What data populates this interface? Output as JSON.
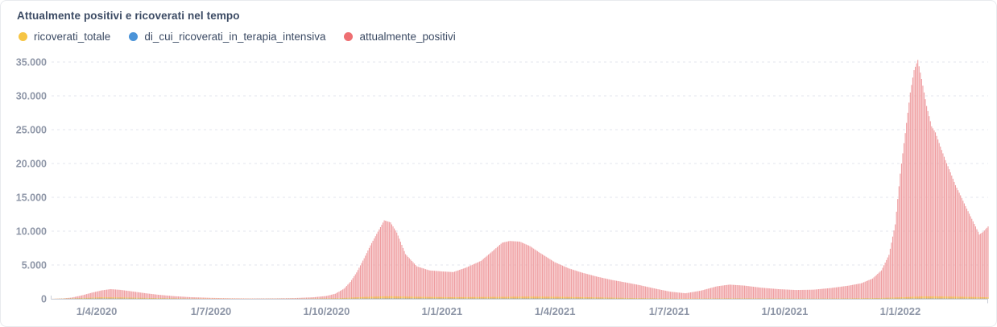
{
  "header": {
    "title": "Attualmente positivi e ricoverati nel tempo"
  },
  "legend": {
    "items": [
      {
        "name": "ricoverati_totale",
        "label": "ricoverati_totale",
        "color": "#f6c544"
      },
      {
        "name": "di_cui_ricoverati_in_terapia_intensiva",
        "label": "di_cui_ricoverati_in_terapia_intensiva",
        "color": "#4b93d8"
      },
      {
        "name": "attualmente_positivi",
        "label": "attualmente_positivi",
        "color": "#ee6f72"
      }
    ]
  },
  "chart_data": {
    "type": "bar",
    "title": "Attualmente positivi e ricoverati nel tempo",
    "xlabel": "",
    "ylabel": "",
    "grid": "horizontal-dashed",
    "legend_position": "top-left",
    "x_axis": {
      "start_date": "2020-02-25",
      "end_date": "2022-03-12",
      "ticks": [
        {
          "label": "1/4/2020",
          "date": "2020-04-01"
        },
        {
          "label": "1/7/2020",
          "date": "2020-07-01"
        },
        {
          "label": "1/10/2020",
          "date": "2020-10-01"
        },
        {
          "label": "1/1/2021",
          "date": "2021-01-01"
        },
        {
          "label": "1/4/2021",
          "date": "2021-04-01"
        },
        {
          "label": "1/7/2021",
          "date": "2021-07-01"
        },
        {
          "label": "1/10/2021",
          "date": "2021-10-01"
        },
        {
          "label": "1/1/2022",
          "date": "2022-01-01"
        }
      ]
    },
    "y_axis": {
      "min": 0,
      "max": 35000,
      "step": 5000,
      "tick_labels": [
        "0",
        "5.000",
        "10.000",
        "15.000",
        "20.000",
        "25.000",
        "30.000",
        "35.000"
      ]
    },
    "series": [
      {
        "name": "attualmente_positivi",
        "bar_color": "#ef9da0",
        "opacity": 1,
        "points": [
          [
            "2020-02-25",
            5
          ],
          [
            "2020-03-05",
            60
          ],
          [
            "2020-03-12",
            180
          ],
          [
            "2020-03-20",
            500
          ],
          [
            "2020-03-28",
            900
          ],
          [
            "2020-04-05",
            1250
          ],
          [
            "2020-04-12",
            1430
          ],
          [
            "2020-04-20",
            1320
          ],
          [
            "2020-05-01",
            1050
          ],
          [
            "2020-05-10",
            820
          ],
          [
            "2020-05-20",
            600
          ],
          [
            "2020-06-01",
            400
          ],
          [
            "2020-06-15",
            240
          ],
          [
            "2020-07-01",
            140
          ],
          [
            "2020-07-15",
            90
          ],
          [
            "2020-08-01",
            60
          ],
          [
            "2020-08-20",
            70
          ],
          [
            "2020-09-05",
            110
          ],
          [
            "2020-09-20",
            220
          ],
          [
            "2020-10-01",
            420
          ],
          [
            "2020-10-08",
            750
          ],
          [
            "2020-10-15",
            1500
          ],
          [
            "2020-10-20",
            2500
          ],
          [
            "2020-10-25",
            3900
          ],
          [
            "2020-10-31",
            6000
          ],
          [
            "2020-11-05",
            7900
          ],
          [
            "2020-11-10",
            9600
          ],
          [
            "2020-11-16",
            11600
          ],
          [
            "2020-11-21",
            11300
          ],
          [
            "2020-11-26",
            9800
          ],
          [
            "2020-12-03",
            6600
          ],
          [
            "2020-12-12",
            4800
          ],
          [
            "2020-12-22",
            4200
          ],
          [
            "2021-01-01",
            4050
          ],
          [
            "2021-01-10",
            3950
          ],
          [
            "2021-01-20",
            4600
          ],
          [
            "2021-02-01",
            5600
          ],
          [
            "2021-02-10",
            7000
          ],
          [
            "2021-02-18",
            8300
          ],
          [
            "2021-02-24",
            8550
          ],
          [
            "2021-03-04",
            8450
          ],
          [
            "2021-03-12",
            7800
          ],
          [
            "2021-03-20",
            6800
          ],
          [
            "2021-04-01",
            5400
          ],
          [
            "2021-04-12",
            4500
          ],
          [
            "2021-04-22",
            3900
          ],
          [
            "2021-05-04",
            3300
          ],
          [
            "2021-05-16",
            2800
          ],
          [
            "2021-05-28",
            2400
          ],
          [
            "2021-06-08",
            2000
          ],
          [
            "2021-06-20",
            1500
          ],
          [
            "2021-07-02",
            1050
          ],
          [
            "2021-07-14",
            820
          ],
          [
            "2021-07-26",
            1200
          ],
          [
            "2021-08-08",
            1850
          ],
          [
            "2021-08-18",
            2100
          ],
          [
            "2021-08-30",
            1950
          ],
          [
            "2021-09-12",
            1650
          ],
          [
            "2021-09-26",
            1430
          ],
          [
            "2021-10-10",
            1300
          ],
          [
            "2021-10-24",
            1350
          ],
          [
            "2021-11-07",
            1600
          ],
          [
            "2021-11-21",
            1950
          ],
          [
            "2021-12-01",
            2300
          ],
          [
            "2021-12-10",
            3000
          ],
          [
            "2021-12-17",
            4200
          ],
          [
            "2021-12-23",
            6500
          ],
          [
            "2021-12-28",
            11000
          ],
          [
            "2022-01-01",
            18500
          ],
          [
            "2022-01-05",
            24500
          ],
          [
            "2022-01-09",
            30500
          ],
          [
            "2022-01-12",
            33800
          ],
          [
            "2022-01-15",
            35300
          ],
          [
            "2022-01-18",
            32500
          ],
          [
            "2022-01-22",
            28500
          ],
          [
            "2022-01-26",
            25500
          ],
          [
            "2022-01-29",
            24600
          ],
          [
            "2022-02-02",
            22500
          ],
          [
            "2022-02-06",
            20500
          ],
          [
            "2022-02-10",
            18700
          ],
          [
            "2022-02-14",
            16800
          ],
          [
            "2022-02-18",
            15300
          ],
          [
            "2022-02-22",
            13700
          ],
          [
            "2022-02-26",
            12200
          ],
          [
            "2022-03-02",
            10700
          ],
          [
            "2022-03-05",
            9500
          ],
          [
            "2022-03-08",
            9900
          ],
          [
            "2022-03-11",
            10500
          ],
          [
            "2022-03-12",
            10700
          ]
        ]
      },
      {
        "name": "ricoverati_totale",
        "bar_color": "#f2b93c",
        "opacity": 0.9,
        "points": [
          [
            "2020-02-25",
            2
          ],
          [
            "2020-03-15",
            80
          ],
          [
            "2020-04-05",
            220
          ],
          [
            "2020-04-20",
            200
          ],
          [
            "2020-05-15",
            120
          ],
          [
            "2020-06-15",
            40
          ],
          [
            "2020-08-01",
            15
          ],
          [
            "2020-09-15",
            30
          ],
          [
            "2020-10-10",
            90
          ],
          [
            "2020-11-01",
            280
          ],
          [
            "2020-11-20",
            380
          ],
          [
            "2020-12-10",
            300
          ],
          [
            "2021-01-10",
            240
          ],
          [
            "2021-02-20",
            290
          ],
          [
            "2021-03-10",
            330
          ],
          [
            "2021-04-01",
            300
          ],
          [
            "2021-05-01",
            220
          ],
          [
            "2021-06-01",
            120
          ],
          [
            "2021-07-10",
            40
          ],
          [
            "2021-08-20",
            80
          ],
          [
            "2021-09-20",
            60
          ],
          [
            "2021-10-20",
            45
          ],
          [
            "2021-11-20",
            70
          ],
          [
            "2021-12-15",
            120
          ],
          [
            "2022-01-01",
            220
          ],
          [
            "2022-01-20",
            360
          ],
          [
            "2022-02-05",
            340
          ],
          [
            "2022-02-25",
            280
          ],
          [
            "2022-03-12",
            230
          ]
        ]
      },
      {
        "name": "di_cui_ricoverati_in_terapia_intensiva",
        "bar_color": "#4a90d9",
        "opacity": 1,
        "points": [
          [
            "2020-02-25",
            0
          ],
          [
            "2020-04-05",
            40
          ],
          [
            "2020-05-15",
            20
          ],
          [
            "2020-07-01",
            3
          ],
          [
            "2020-10-10",
            12
          ],
          [
            "2020-11-20",
            48
          ],
          [
            "2020-12-20",
            38
          ],
          [
            "2021-01-20",
            30
          ],
          [
            "2021-03-10",
            42
          ],
          [
            "2021-04-15",
            35
          ],
          [
            "2021-06-01",
            15
          ],
          [
            "2021-07-15",
            4
          ],
          [
            "2021-08-25",
            12
          ],
          [
            "2021-10-15",
            6
          ],
          [
            "2021-12-01",
            10
          ],
          [
            "2022-01-01",
            25
          ],
          [
            "2022-01-25",
            40
          ],
          [
            "2022-02-20",
            28
          ],
          [
            "2022-03-12",
            20
          ]
        ]
      }
    ]
  }
}
